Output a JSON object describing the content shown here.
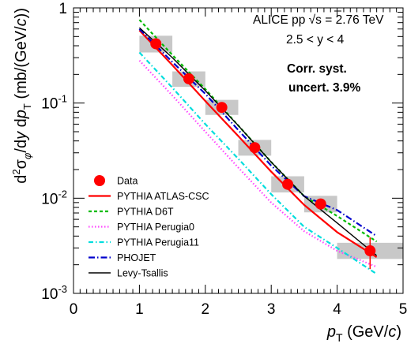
{
  "chart_data": {
    "type": "line",
    "x_axis": {
      "label_italic": "p",
      "label_sub": "T",
      "label_rest": " (GeV/",
      "label_unit_italic": "c",
      "label_close": ")",
      "range": [
        0,
        5
      ],
      "ticks": [
        "0",
        "1",
        "2",
        "3",
        "4",
        "5"
      ]
    },
    "y_axis": {
      "scale": "log",
      "range": [
        0.001,
        1
      ],
      "label": "d²σφ/dy dpT (mb/(GeV/c))",
      "ticks": [
        {
          "value": 1,
          "base": "1",
          "exp": ""
        },
        {
          "value": 0.1,
          "base": "10",
          "exp": "-1"
        },
        {
          "value": 0.01,
          "base": "10",
          "exp": "-2"
        },
        {
          "value": 0.001,
          "base": "10",
          "exp": "-3"
        }
      ]
    },
    "annotations": {
      "experiment_prefix": "ALICE pp ",
      "sqrt_symbol": "√",
      "energy": "s = 2.76 TeV",
      "rapidity": "2.5 < y < 4",
      "syst_line1": "Corr. syst.",
      "syst_line2": "uncert. 3.9%"
    },
    "data_points": {
      "name": "Data",
      "x": [
        1.25,
        1.75,
        2.25,
        2.75,
        3.25,
        3.75,
        4.5
      ],
      "y": [
        0.42,
        0.18,
        0.09,
        0.034,
        0.014,
        0.0087,
        0.0028
      ],
      "x_err": [
        0.25,
        0.25,
        0.25,
        0.25,
        0.25,
        0.25,
        0.5
      ],
      "syst_y_lo": [
        0.34,
        0.148,
        0.075,
        0.028,
        0.0115,
        0.0071,
        0.0023
      ],
      "syst_y_hi": [
        0.51,
        0.215,
        0.108,
        0.041,
        0.017,
        0.0106,
        0.0034
      ],
      "stat_y_lo": [
        0.4,
        0.17,
        0.085,
        0.032,
        0.013,
        0.0081,
        0.0018
      ],
      "stat_y_hi": [
        0.44,
        0.19,
        0.095,
        0.036,
        0.015,
        0.0093,
        0.0039
      ]
    },
    "series": [
      {
        "name": "PYTHIA ATLAS-CSC",
        "color": "#ff0000",
        "dash": "",
        "width": 2.2,
        "x": [
          1.0,
          1.5,
          2.0,
          2.5,
          3.0,
          3.5,
          4.0,
          4.6
        ],
        "y": [
          0.58,
          0.25,
          0.105,
          0.045,
          0.019,
          0.0085,
          0.0044,
          0.0024
        ]
      },
      {
        "name": "PYTHIA D6T",
        "color": "#00bb00",
        "dash": "4,3",
        "width": 2.2,
        "x": [
          1.0,
          1.5,
          2.0,
          2.5,
          3.0,
          3.5,
          4.0,
          4.6
        ],
        "y": [
          0.75,
          0.32,
          0.14,
          0.058,
          0.024,
          0.0105,
          0.0065,
          0.0035
        ]
      },
      {
        "name": "PYTHIA Perugia0",
        "color": "#ff44ff",
        "dash": "1.5,2.5",
        "width": 2.2,
        "x": [
          1.0,
          1.5,
          2.0,
          2.5,
          3.0,
          3.5,
          4.0,
          4.6
        ],
        "y": [
          0.28,
          0.12,
          0.05,
          0.021,
          0.009,
          0.0045,
          0.0028,
          0.0019
        ]
      },
      {
        "name": "PYTHIA Perugia11",
        "color": "#00dddd",
        "dash": "6,3,1.5,3",
        "width": 2.2,
        "x": [
          1.0,
          1.5,
          2.0,
          2.5,
          3.0,
          3.5,
          4.0,
          4.6
        ],
        "y": [
          0.34,
          0.145,
          0.06,
          0.026,
          0.011,
          0.005,
          0.003,
          0.0016
        ]
      },
      {
        "name": "PHOJET",
        "color": "#0000cc",
        "dash": "8,3,1.5,3",
        "width": 2.2,
        "x": [
          1.0,
          1.5,
          2.0,
          2.5,
          3.0,
          3.5,
          4.0,
          4.6
        ],
        "y": [
          0.6,
          0.27,
          0.125,
          0.052,
          0.022,
          0.0105,
          0.0075,
          0.004
        ]
      },
      {
        "name": "Levy-Tsallis",
        "color": "#000000",
        "dash": "",
        "width": 1.4,
        "x": [
          1.0,
          1.5,
          2.0,
          2.5,
          3.0,
          3.5,
          4.0,
          4.6
        ],
        "y": [
          0.62,
          0.3,
          0.135,
          0.058,
          0.024,
          0.0105,
          0.0055,
          0.0025
        ]
      }
    ],
    "legend": {
      "placement": "bottom-left"
    },
    "grid": false
  }
}
